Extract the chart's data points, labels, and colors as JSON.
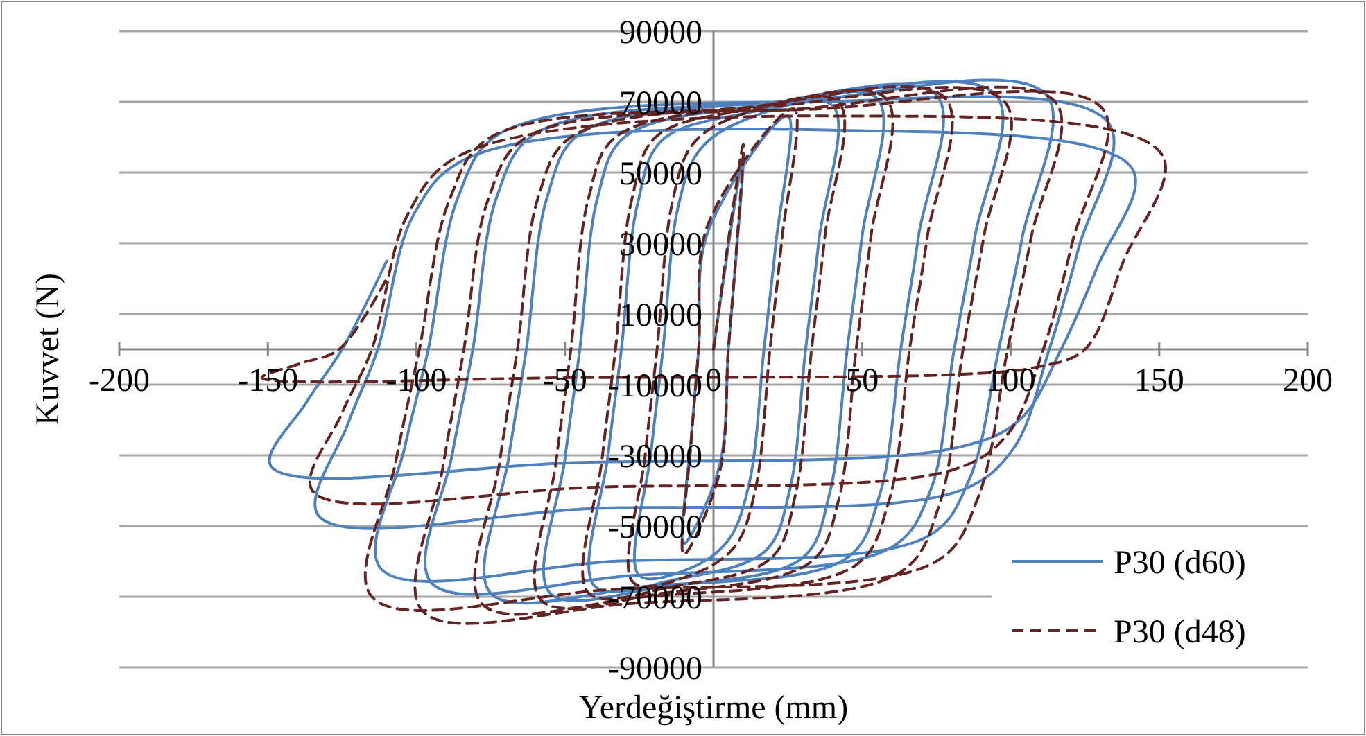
{
  "chart_data": {
    "type": "line",
    "xlabel": "Yerdeğiştirme (mm)",
    "ylabel": "Kuvvet (N)",
    "xlim": [
      -200,
      200
    ],
    "xticks": [
      -200,
      -150,
      -100,
      -50,
      0,
      50,
      100,
      150,
      200
    ],
    "ylim": [
      -90000,
      90000
    ],
    "yticks": [
      -90000,
      -70000,
      -50000,
      -30000,
      -10000,
      10000,
      30000,
      50000,
      70000,
      90000
    ],
    "grid": "y",
    "legend": "bottom right",
    "series": [
      {
        "name": "P30 (d60)",
        "color": "#4f81bd",
        "line_style": "solid",
        "x": [
          0,
          10,
          7.5,
          5,
          2,
          -10,
          -7.5,
          -5,
          -2,
          25,
          21,
          17,
          12,
          5,
          -8,
          -25,
          -21,
          -17,
          -12,
          -5,
          8,
          40,
          35.5,
          31,
          25.6,
          17.5,
          -12,
          -40,
          -35.5,
          -31,
          -25.6,
          -17.5,
          12,
          55,
          50,
          45,
          39,
          30,
          -16,
          -55,
          -50,
          -45,
          -39,
          -30,
          16,
          75,
          69,
          63,
          56,
          45,
          -22,
          -75,
          -69,
          -63,
          -56,
          -45,
          22,
          95,
          88,
          81,
          73,
          60,
          -28,
          -95,
          -88,
          -81,
          -73,
          -60,
          28,
          112,
          104,
          96,
          86,
          72,
          -34,
          -112,
          -104,
          -96,
          -86,
          -72,
          34,
          133,
          123,
          113,
          101,
          83,
          -40,
          -133,
          -123,
          -113,
          -101,
          -83,
          40,
          141,
          129,
          117,
          103,
          81,
          -45,
          -149,
          -137,
          -125,
          -110
        ],
        "values": [
          0,
          55000,
          25000,
          0,
          -33000,
          -55000,
          -25000,
          0,
          33000,
          66000,
          30000,
          0,
          -38000,
          -54000,
          -62000,
          -64000,
          -29000,
          0,
          40000,
          56000,
          64000,
          69000,
          31000,
          0,
          -40000,
          -57000,
          -65000,
          -67000,
          -30000,
          0,
          41000,
          59000,
          67000,
          71000,
          32000,
          0,
          -41000,
          -59000,
          -67000,
          -69000,
          -31000,
          0,
          43000,
          60000,
          69000,
          72000,
          32000,
          0,
          -41000,
          -59000,
          -67000,
          -69000,
          -31000,
          0,
          43000,
          61000,
          70000,
          72000,
          32000,
          0,
          -40000,
          -56000,
          -64000,
          -66000,
          -30000,
          0,
          43000,
          61000,
          70000,
          72000,
          32000,
          0,
          -37000,
          -53000,
          -60000,
          -62000,
          -28000,
          0,
          43000,
          61000,
          70000,
          64000,
          29000,
          0,
          -28000,
          -40000,
          -45000,
          -47000,
          -21000,
          0,
          38000,
          54000,
          62000,
          51000,
          23000,
          0,
          -20000,
          -28000,
          -32000,
          -33000,
          -15000,
          0,
          25000
        ]
      },
      {
        "name": "P30 (d48)",
        "color": "#632523",
        "line_style": "dashed",
        "x": [
          0,
          10,
          7.5,
          5,
          2,
          -10,
          -7.5,
          -5,
          -2,
          27,
          23,
          19,
          14,
          7,
          -8,
          -27,
          -23,
          -19,
          -14,
          -7,
          8,
          42,
          37.5,
          33,
          27.6,
          19.5,
          -13,
          -42,
          -37.5,
          -33,
          -27.6,
          -19.5,
          13,
          58,
          53,
          48,
          42,
          33,
          -17,
          -58,
          -53,
          -48,
          -42,
          -33,
          17,
          78,
          72,
          66,
          59,
          48,
          -23,
          -78,
          -72,
          -66,
          -59,
          -48,
          23,
          98,
          91,
          84,
          76,
          63,
          -29,
          -98,
          -91,
          -84,
          -76,
          -63,
          29,
          115,
          107,
          99,
          89,
          75,
          -35,
          -115,
          -107,
          -99,
          -89,
          -75,
          35,
          131,
          121,
          111,
          99,
          81,
          -40,
          -135,
          -125,
          -115,
          -103,
          -85,
          40,
          151,
          138,
          125,
          109,
          85,
          -45,
          -152,
          -139,
          -126,
          -110
        ],
        "values": [
          0,
          58000,
          26000,
          0,
          -35000,
          -58000,
          -26000,
          0,
          35000,
          68000,
          31000,
          0,
          -40000,
          -56000,
          -64000,
          -66000,
          -30000,
          0,
          41000,
          58000,
          66000,
          70000,
          32000,
          0,
          -41000,
          -59000,
          -67000,
          -69000,
          -31000,
          0,
          42000,
          60000,
          68000,
          71000,
          32000,
          0,
          -43000,
          -60000,
          -69000,
          -71000,
          -32000,
          0,
          43000,
          60000,
          69000,
          71000,
          32000,
          0,
          -43000,
          -61000,
          -70000,
          -72000,
          -32000,
          0,
          43000,
          60000,
          69000,
          70000,
          32000,
          0,
          -44000,
          -63000,
          -72000,
          -74000,
          -33000,
          0,
          42000,
          60000,
          68000,
          70000,
          32000,
          0,
          -42000,
          -60000,
          -68000,
          -70000,
          -32000,
          0,
          42000,
          60000,
          68000,
          68000,
          31000,
          0,
          -24000,
          -34000,
          -39000,
          -40000,
          -18000,
          0,
          38000,
          55000,
          66000,
          55000,
          25000,
          0,
          -5000,
          -7000,
          -8000,
          -8000,
          -4000,
          0,
          20000
        ]
      }
    ]
  }
}
